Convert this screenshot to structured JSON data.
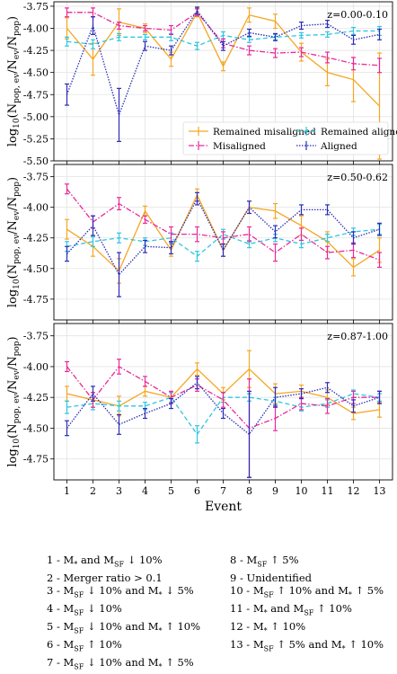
{
  "chart_data": {
    "type": "line",
    "x": [
      1,
      2,
      3,
      4,
      5,
      6,
      7,
      8,
      9,
      10,
      11,
      12,
      13
    ],
    "xlabel": "Event",
    "colors": {
      "Remained misaligned": "#f5a623",
      "Remained aligned": "#2fc5e0",
      "Misaligned": "#e8299a",
      "Aligned": "#2b2bb8"
    },
    "legend": {
      "placement": "lower-right",
      "entries": [
        "Remained misaligned",
        "Remained aligned",
        "Misaligned",
        "Aligned"
      ]
    },
    "panels": [
      {
        "label": "z=0.00-0.10",
        "ylim": [
          -5.5,
          -3.7
        ],
        "yticks": [
          "-3.75",
          "-4.00",
          "-4.25",
          "-4.50",
          "-4.75",
          "-5.00",
          "-5.25",
          "-5.50"
        ],
        "ylabel_main": "log",
        "ylabel_sub": "10",
        "ylabel_expr": "(N",
        "ylabel_sub2": "pop, ev",
        "ylabel_mid": "/N",
        "ylabel_sub3": "ev",
        "ylabel_mid2": "/N",
        "ylabel_sub4": "pop",
        "ylabel_end": ")",
        "series": [
          {
            "name": "Remained misaligned",
            "values": [
              -4.0,
              -4.35,
              -3.93,
              -4.0,
              -4.35,
              -3.82,
              -4.43,
              -3.85,
              -3.92,
              -4.27,
              -4.5,
              -4.58,
              -4.88
            ],
            "err": [
              0.12,
              0.18,
              0.15,
              0.05,
              0.08,
              0.05,
              0.05,
              0.08,
              0.08,
              0.1,
              0.15,
              0.25,
              0.6
            ]
          },
          {
            "name": "Remained aligned",
            "values": [
              -4.15,
              -4.18,
              -4.1,
              -4.1,
              -4.1,
              -4.2,
              -4.08,
              -4.13,
              -4.1,
              -4.08,
              -4.07,
              -4.03,
              -4.03
            ],
            "err": [
              0.05,
              0.05,
              0.04,
              0.03,
              0.04,
              0.04,
              0.04,
              0.03,
              0.03,
              0.03,
              0.03,
              0.04,
              0.05
            ]
          },
          {
            "name": "Misaligned",
            "values": [
              -3.82,
              -3.82,
              -3.97,
              -4.0,
              -4.02,
              -3.82,
              -4.17,
              -4.25,
              -4.28,
              -4.27,
              -4.33,
              -4.4,
              -4.42
            ],
            "err": [
              0.05,
              0.05,
              0.04,
              0.03,
              0.05,
              0.04,
              0.05,
              0.05,
              0.05,
              0.05,
              0.06,
              0.07,
              0.08
            ]
          },
          {
            "name": "Aligned",
            "values": [
              -4.75,
              -3.97,
              -4.98,
              -4.2,
              -4.25,
              -3.8,
              -4.2,
              -4.05,
              -4.1,
              -3.97,
              -3.95,
              -4.13,
              -4.07
            ],
            "err": [
              0.12,
              0.1,
              0.3,
              0.05,
              0.05,
              0.04,
              0.05,
              0.04,
              0.04,
              0.04,
              0.04,
              0.05,
              0.06
            ]
          }
        ]
      },
      {
        "label": "z=0.50-0.62",
        "ylim": [
          -4.92,
          -3.65
        ],
        "yticks": [
          "-3.75",
          "-4.00",
          "-4.25",
          "-4.50",
          "-4.75"
        ],
        "ylabel_main": "log",
        "ylabel_sub": "10",
        "ylabel_expr": "(N",
        "ylabel_sub2": "pop, ev",
        "ylabel_mid": "/N",
        "ylabel_sub3": "ev",
        "ylabel_mid2": "/N",
        "ylabel_sub4": "pop",
        "ylabel_end": ")",
        "series": [
          {
            "name": "Remained misaligned",
            "values": [
              -4.18,
              -4.32,
              -4.52,
              -4.03,
              -4.35,
              -3.9,
              -4.35,
              -4.0,
              -4.03,
              -4.15,
              -4.28,
              -4.49,
              -4.35
            ],
            "err": [
              0.08,
              0.08,
              0.1,
              0.04,
              0.05,
              0.05,
              0.05,
              0.05,
              0.06,
              0.08,
              0.08,
              0.07,
              0.1
            ]
          },
          {
            "name": "Remained aligned",
            "values": [
              -4.32,
              -4.28,
              -4.25,
              -4.28,
              -4.25,
              -4.4,
              -4.22,
              -4.3,
              -4.25,
              -4.3,
              -4.25,
              -4.2,
              -4.18
            ],
            "err": [
              0.04,
              0.04,
              0.04,
              0.03,
              0.04,
              0.04,
              0.04,
              0.03,
              0.03,
              0.03,
              0.03,
              0.03,
              0.04
            ]
          },
          {
            "name": "Misaligned",
            "values": [
              -3.85,
              -4.12,
              -3.97,
              -4.1,
              -4.22,
              -4.22,
              -4.25,
              -4.22,
              -4.37,
              -4.22,
              -4.37,
              -4.35,
              -4.43
            ],
            "err": [
              0.04,
              0.05,
              0.05,
              0.03,
              0.06,
              0.06,
              0.05,
              0.06,
              0.07,
              0.05,
              0.05,
              0.06,
              0.06
            ]
          },
          {
            "name": "Aligned",
            "values": [
              -4.38,
              -4.15,
              -4.55,
              -4.32,
              -4.33,
              -3.93,
              -4.35,
              -4.0,
              -4.2,
              -4.02,
              -4.02,
              -4.25,
              -4.18
            ],
            "err": [
              0.06,
              0.08,
              0.18,
              0.05,
              0.05,
              0.05,
              0.05,
              0.05,
              0.05,
              0.04,
              0.04,
              0.05,
              0.05
            ]
          }
        ]
      },
      {
        "label": "z=0.87-1.00",
        "ylim": [
          -4.92,
          -3.65
        ],
        "yticks": [
          "-3.75",
          "-4.00",
          "-4.25",
          "-4.50",
          "-4.75"
        ],
        "ylabel_main": "log",
        "ylabel_sub": "10",
        "ylabel_expr": "(N",
        "ylabel_sub2": "pop, ev",
        "ylabel_mid": "/N",
        "ylabel_sub3": "ev",
        "ylabel_mid2": "/N",
        "ylabel_sub4": "pop",
        "ylabel_end": ")",
        "series": [
          {
            "name": "Remained misaligned",
            "values": [
              -4.22,
              -4.27,
              -4.32,
              -4.2,
              -4.25,
              -4.02,
              -4.22,
              -4.02,
              -4.22,
              -4.2,
              -4.25,
              -4.38,
              -4.35
            ],
            "err": [
              0.06,
              0.06,
              0.08,
              0.04,
              0.04,
              0.05,
              0.05,
              0.15,
              0.08,
              0.05,
              0.06,
              0.05,
              0.06
            ]
          },
          {
            "name": "Remained aligned",
            "values": [
              -4.33,
              -4.3,
              -4.32,
              -4.32,
              -4.25,
              -4.55,
              -4.25,
              -4.25,
              -4.28,
              -4.33,
              -4.3,
              -4.22,
              -4.25
            ],
            "err": [
              0.05,
              0.05,
              0.04,
              0.03,
              0.04,
              0.07,
              0.04,
              0.03,
              0.03,
              0.03,
              0.03,
              0.03,
              0.03
            ]
          },
          {
            "name": "Misaligned",
            "values": [
              -4.0,
              -4.27,
              -4.0,
              -4.12,
              -4.25,
              -4.15,
              -4.27,
              -4.5,
              -4.42,
              -4.3,
              -4.32,
              -4.25,
              -4.25
            ],
            "err": [
              0.04,
              0.06,
              0.06,
              0.04,
              0.05,
              0.05,
              0.06,
              0.4,
              0.1,
              0.05,
              0.06,
              0.05,
              0.05
            ]
          },
          {
            "name": "Aligned",
            "values": [
              -4.5,
              -4.22,
              -4.47,
              -4.38,
              -4.3,
              -4.13,
              -4.38,
              -4.55,
              -4.25,
              -4.22,
              -4.17,
              -4.32,
              -4.25
            ],
            "err": [
              0.06,
              0.06,
              0.08,
              0.04,
              0.04,
              0.05,
              0.04,
              0.35,
              0.08,
              0.04,
              0.04,
              0.05,
              0.05
            ]
          }
        ]
      }
    ]
  },
  "key_left": [
    {
      "pre": "1 - M",
      "sub": "*",
      "post": " and M",
      "sub2": "SF",
      "post2": " ↓ 10%"
    },
    {
      "pre": "2 - Merger ratio > 0.1",
      "sub": "",
      "post": "",
      "sub2": "",
      "post2": ""
    },
    {
      "pre": "3 - M",
      "sub": "SF",
      "post": " ↓ 10% and M",
      "sub2": "*",
      "post2": " ↓ 5%"
    },
    {
      "pre": "4 - M",
      "sub": "SF",
      "post": " ↓ 10%",
      "sub2": "",
      "post2": ""
    },
    {
      "pre": "5 - M",
      "sub": "SF",
      "post": " ↓ 10% and M",
      "sub2": "*",
      "post2": " ↑ 10%"
    },
    {
      "pre": "6 - M",
      "sub": "SF",
      "post": " ↑ 10%",
      "sub2": "",
      "post2": ""
    },
    {
      "pre": "7 - M",
      "sub": "SF",
      "post": " ↓ 10% and M",
      "sub2": "*",
      "post2": " ↑ 5%"
    }
  ],
  "key_right": [
    {
      "pre": "8 - M",
      "sub": "SF",
      "post": " ↑ 5%",
      "sub2": "",
      "post2": ""
    },
    {
      "pre": "9 - Unidentified",
      "sub": "",
      "post": "",
      "sub2": "",
      "post2": ""
    },
    {
      "pre": "10 - M",
      "sub": "SF",
      "post": " ↑ 10% and M",
      "sub2": "*",
      "post2": " ↑ 5%"
    },
    {
      "pre": "11 - M",
      "sub": "*",
      "post": " and M",
      "sub2": "SF",
      "post2": " ↑ 10%"
    },
    {
      "pre": "12 - M",
      "sub": "*",
      "post": " ↑ 10%",
      "sub2": "",
      "post2": ""
    },
    {
      "pre": "13 - M",
      "sub": "SF",
      "post": " ↑ 5% and M",
      "sub2": "*",
      "post2": " ↑ 10%"
    }
  ]
}
